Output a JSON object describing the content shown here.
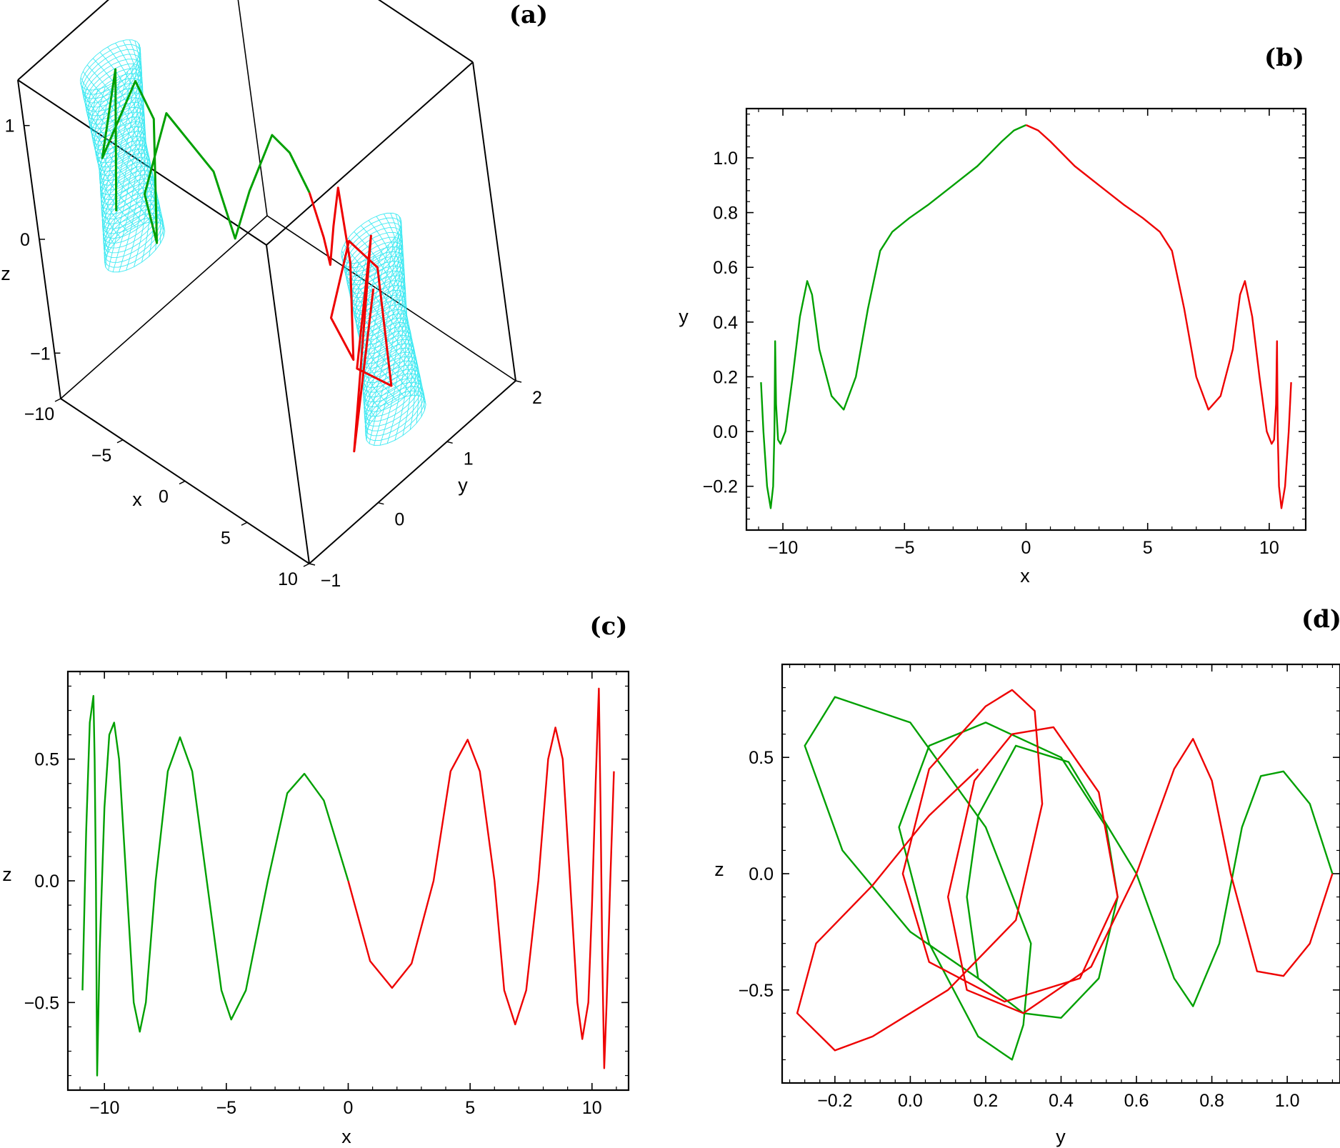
{
  "colors": {
    "green": "#00a000",
    "red": "#ee0000",
    "cyan": "#1ee6f0",
    "frame": "#000000"
  },
  "chart_data": [
    {
      "panel": "(a)",
      "type": "line",
      "projection": "3d",
      "xlabel": "x",
      "ylabel": "y",
      "zlabel": "z",
      "xlim": [
        -10,
        10
      ],
      "ylim": [
        -1,
        2
      ],
      "zlim": [
        -1.4,
        1.4
      ],
      "xticks": [
        "−10",
        "−5",
        "0",
        "5",
        "10"
      ],
      "yticks": [
        "−1",
        "0",
        "1",
        "2"
      ],
      "zticks": [
        "−1",
        "0",
        "1"
      ],
      "series": [
        {
          "color": "green",
          "points": [
            [
              -10.9,
              0.18,
              -0.45
            ],
            [
              -10.3,
              0.33,
              0.76
            ],
            [
              -10.0,
              -0.04,
              0.2
            ],
            [
              -9.5,
              0.45,
              0.65
            ],
            [
              -9.0,
              0.55,
              0.3
            ],
            [
              -8.5,
              0.3,
              -0.62
            ],
            [
              -7.5,
              0.08,
              0.0
            ],
            [
              -6.8,
              0.4,
              0.59
            ],
            [
              -5.5,
              0.72,
              0.0
            ],
            [
              -4.8,
              0.78,
              -0.57
            ],
            [
              -3.5,
              0.86,
              -0.1
            ],
            [
              -1.8,
              1.0,
              0.44
            ],
            [
              -1.0,
              1.08,
              0.3
            ],
            [
              0.0,
              1.12,
              0.0
            ]
          ]
        },
        {
          "color": "red",
          "points": [
            [
              0.0,
              1.12,
              0.0
            ],
            [
              1.0,
              1.08,
              -0.3
            ],
            [
              1.8,
              1.0,
              -0.44
            ],
            [
              3.5,
              0.86,
              0.1
            ],
            [
              4.9,
              0.78,
              0.58
            ],
            [
              5.5,
              0.72,
              0.0
            ],
            [
              6.8,
              0.4,
              -0.59
            ],
            [
              7.5,
              0.08,
              0.0
            ],
            [
              8.5,
              0.3,
              0.63
            ],
            [
              9.0,
              0.55,
              0.3
            ],
            [
              9.5,
              0.45,
              -0.65
            ],
            [
              10.0,
              -0.04,
              -0.2
            ],
            [
              10.3,
              0.33,
              0.79
            ],
            [
              10.4,
              -0.28,
              -0.77
            ],
            [
              10.9,
              0.18,
              0.45
            ]
          ]
        }
      ],
      "surfaces": [
        {
          "color": "cyan",
          "x_center": -10.5,
          "y_range": [
            -0.3,
            0.3
          ],
          "z_range": [
            -0.8,
            0.8
          ]
        },
        {
          "color": "cyan",
          "x_center": 10.5,
          "y_range": [
            -0.3,
            0.3
          ],
          "z_range": [
            -0.8,
            0.8
          ]
        }
      ]
    },
    {
      "panel": "(b)",
      "type": "line",
      "xlabel": "x",
      "ylabel": "y",
      "xlim": [
        -11.5,
        11.5
      ],
      "ylim": [
        -0.36,
        1.18
      ],
      "xticks": [
        -10,
        -5,
        0,
        5,
        10
      ],
      "yticks": [
        -0.2,
        0.0,
        0.2,
        0.4,
        0.6,
        0.8,
        1.0
      ],
      "xtick_labels": [
        "−10",
        "−5",
        "0",
        "5",
        "10"
      ],
      "ytick_labels": [
        "−0.2",
        "0.0",
        "0.2",
        "0.4",
        "0.6",
        "0.8",
        "1.0"
      ],
      "series": [
        {
          "color": "green",
          "points": [
            [
              -10.9,
              0.18
            ],
            [
              -10.8,
              0.0
            ],
            [
              -10.65,
              -0.2
            ],
            [
              -10.5,
              -0.28
            ],
            [
              -10.4,
              -0.2
            ],
            [
              -10.35,
              0.0
            ],
            [
              -10.32,
              0.33
            ],
            [
              -10.28,
              0.1
            ],
            [
              -10.2,
              -0.03
            ],
            [
              -10.1,
              -0.045
            ],
            [
              -9.9,
              0.0
            ],
            [
              -9.6,
              0.2
            ],
            [
              -9.3,
              0.42
            ],
            [
              -9.0,
              0.55
            ],
            [
              -8.8,
              0.5
            ],
            [
              -8.5,
              0.3
            ],
            [
              -8.0,
              0.13
            ],
            [
              -7.5,
              0.08
            ],
            [
              -7.0,
              0.2
            ],
            [
              -6.5,
              0.45
            ],
            [
              -6.0,
              0.66
            ],
            [
              -5.5,
              0.73
            ],
            [
              -4.8,
              0.78
            ],
            [
              -4.0,
              0.83
            ],
            [
              -3.0,
              0.9
            ],
            [
              -2.0,
              0.97
            ],
            [
              -1.0,
              1.06
            ],
            [
              -0.5,
              1.1
            ],
            [
              0.0,
              1.12
            ]
          ]
        },
        {
          "color": "red",
          "points": [
            [
              0.0,
              1.12
            ],
            [
              0.5,
              1.1
            ],
            [
              1.0,
              1.06
            ],
            [
              2.0,
              0.97
            ],
            [
              3.0,
              0.9
            ],
            [
              4.0,
              0.83
            ],
            [
              4.8,
              0.78
            ],
            [
              5.5,
              0.73
            ],
            [
              6.0,
              0.66
            ],
            [
              6.5,
              0.45
            ],
            [
              7.0,
              0.2
            ],
            [
              7.5,
              0.08
            ],
            [
              8.0,
              0.13
            ],
            [
              8.5,
              0.3
            ],
            [
              8.8,
              0.5
            ],
            [
              9.0,
              0.55
            ],
            [
              9.3,
              0.42
            ],
            [
              9.6,
              0.2
            ],
            [
              9.9,
              0.0
            ],
            [
              10.1,
              -0.045
            ],
            [
              10.2,
              -0.03
            ],
            [
              10.28,
              0.1
            ],
            [
              10.32,
              0.33
            ],
            [
              10.35,
              0.0
            ],
            [
              10.4,
              -0.2
            ],
            [
              10.5,
              -0.28
            ],
            [
              10.65,
              -0.2
            ],
            [
              10.8,
              0.0
            ],
            [
              10.9,
              0.18
            ]
          ]
        }
      ]
    },
    {
      "panel": "(c)",
      "type": "line",
      "xlabel": "x",
      "ylabel": "z",
      "xlim": [
        -11.5,
        11.5
      ],
      "ylim": [
        -0.86,
        0.86
      ],
      "xticks": [
        -10,
        -5,
        0,
        5,
        10
      ],
      "yticks": [
        -0.5,
        0.0,
        0.5
      ],
      "xtick_labels": [
        "−10",
        "−5",
        "0",
        "5",
        "10"
      ],
      "ytick_labels": [
        "−0.5",
        "0.0",
        "0.5"
      ],
      "series": [
        {
          "color": "green",
          "points": [
            [
              -10.9,
              -0.45
            ],
            [
              -10.75,
              0.2
            ],
            [
              -10.6,
              0.65
            ],
            [
              -10.45,
              0.76
            ],
            [
              -10.4,
              0.5
            ],
            [
              -10.35,
              0.0
            ],
            [
              -10.32,
              -0.5
            ],
            [
              -10.3,
              -0.8
            ],
            [
              -10.2,
              -0.3
            ],
            [
              -10.0,
              0.3
            ],
            [
              -9.8,
              0.6
            ],
            [
              -9.6,
              0.65
            ],
            [
              -9.4,
              0.5
            ],
            [
              -9.1,
              0.0
            ],
            [
              -8.8,
              -0.5
            ],
            [
              -8.55,
              -0.62
            ],
            [
              -8.3,
              -0.5
            ],
            [
              -7.9,
              0.0
            ],
            [
              -7.4,
              0.45
            ],
            [
              -6.9,
              0.59
            ],
            [
              -6.4,
              0.45
            ],
            [
              -5.8,
              0.0
            ],
            [
              -5.2,
              -0.45
            ],
            [
              -4.8,
              -0.57
            ],
            [
              -4.2,
              -0.45
            ],
            [
              -3.3,
              0.0
            ],
            [
              -2.5,
              0.36
            ],
            [
              -1.8,
              0.44
            ],
            [
              -1.0,
              0.33
            ],
            [
              0.0,
              0.0
            ]
          ]
        },
        {
          "color": "red",
          "points": [
            [
              0.0,
              0.0
            ],
            [
              0.9,
              -0.33
            ],
            [
              1.8,
              -0.44
            ],
            [
              2.6,
              -0.34
            ],
            [
              3.5,
              0.0
            ],
            [
              4.2,
              0.45
            ],
            [
              4.9,
              0.58
            ],
            [
              5.4,
              0.45
            ],
            [
              6.0,
              0.0
            ],
            [
              6.4,
              -0.45
            ],
            [
              6.85,
              -0.59
            ],
            [
              7.3,
              -0.45
            ],
            [
              7.8,
              0.0
            ],
            [
              8.2,
              0.5
            ],
            [
              8.5,
              0.63
            ],
            [
              8.8,
              0.5
            ],
            [
              9.1,
              0.0
            ],
            [
              9.4,
              -0.5
            ],
            [
              9.6,
              -0.65
            ],
            [
              9.85,
              -0.5
            ],
            [
              10.0,
              -0.1
            ],
            [
              10.15,
              0.4
            ],
            [
              10.28,
              0.79
            ],
            [
              10.35,
              0.3
            ],
            [
              10.42,
              -0.3
            ],
            [
              10.5,
              -0.77
            ],
            [
              10.6,
              -0.5
            ],
            [
              10.75,
              0.0
            ],
            [
              10.9,
              0.45
            ]
          ]
        }
      ]
    },
    {
      "panel": "(d)",
      "type": "line",
      "xlabel": "y",
      "ylabel": "z",
      "xlim": [
        -0.34,
        1.14
      ],
      "ylim": [
        -0.9,
        0.9
      ],
      "xticks": [
        -0.2,
        0.0,
        0.2,
        0.4,
        0.6,
        0.8,
        1.0
      ],
      "yticks": [
        -0.5,
        0.0,
        0.5
      ],
      "xtick_labels": [
        "−0.2",
        "0.0",
        "0.2",
        "0.4",
        "0.6",
        "0.8",
        "1.0"
      ],
      "ytick_labels": [
        "−0.5",
        "0.0",
        "0.5"
      ],
      "series": [
        {
          "color": "green",
          "points": [
            [
              0.18,
              -0.45
            ],
            [
              0.0,
              -0.25
            ],
            [
              -0.18,
              0.1
            ],
            [
              -0.28,
              0.55
            ],
            [
              -0.2,
              0.76
            ],
            [
              0.0,
              0.65
            ],
            [
              0.2,
              0.2
            ],
            [
              0.32,
              -0.3
            ],
            [
              0.3,
              -0.65
            ],
            [
              0.27,
              -0.8
            ],
            [
              0.18,
              -0.7
            ],
            [
              0.05,
              -0.3
            ],
            [
              -0.03,
              0.2
            ],
            [
              0.05,
              0.55
            ],
            [
              0.2,
              0.65
            ],
            [
              0.4,
              0.5
            ],
            [
              0.52,
              0.2
            ],
            [
              0.55,
              -0.1
            ],
            [
              0.5,
              -0.45
            ],
            [
              0.4,
              -0.62
            ],
            [
              0.3,
              -0.6
            ],
            [
              0.18,
              -0.45
            ],
            [
              0.15,
              -0.1
            ],
            [
              0.18,
              0.25
            ],
            [
              0.28,
              0.55
            ],
            [
              0.42,
              0.48
            ],
            [
              0.6,
              0.0
            ],
            [
              0.7,
              -0.45
            ],
            [
              0.75,
              -0.57
            ],
            [
              0.82,
              -0.3
            ],
            [
              0.88,
              0.2
            ],
            [
              0.93,
              0.42
            ],
            [
              0.99,
              0.44
            ],
            [
              1.06,
              0.3
            ],
            [
              1.12,
              0.0
            ]
          ]
        },
        {
          "color": "red",
          "points": [
            [
              1.12,
              0.0
            ],
            [
              1.06,
              -0.3
            ],
            [
              0.99,
              -0.44
            ],
            [
              0.92,
              -0.42
            ],
            [
              0.85,
              0.0
            ],
            [
              0.8,
              0.4
            ],
            [
              0.75,
              0.58
            ],
            [
              0.7,
              0.45
            ],
            [
              0.6,
              0.0
            ],
            [
              0.48,
              -0.4
            ],
            [
              0.3,
              -0.6
            ],
            [
              0.15,
              -0.5
            ],
            [
              0.1,
              -0.1
            ],
            [
              0.17,
              0.4
            ],
            [
              0.27,
              0.6
            ],
            [
              0.38,
              0.63
            ],
            [
              0.5,
              0.35
            ],
            [
              0.55,
              -0.1
            ],
            [
              0.45,
              -0.45
            ],
            [
              0.25,
              -0.55
            ],
            [
              0.05,
              -0.38
            ],
            [
              -0.02,
              0.0
            ],
            [
              0.05,
              0.45
            ],
            [
              0.2,
              0.72
            ],
            [
              0.27,
              0.79
            ],
            [
              0.33,
              0.7
            ],
            [
              0.35,
              0.3
            ],
            [
              0.28,
              -0.2
            ],
            [
              0.1,
              -0.5
            ],
            [
              -0.1,
              -0.7
            ],
            [
              -0.2,
              -0.76
            ],
            [
              -0.3,
              -0.6
            ],
            [
              -0.25,
              -0.3
            ],
            [
              -0.1,
              -0.05
            ],
            [
              0.05,
              0.25
            ],
            [
              0.18,
              0.45
            ]
          ]
        }
      ]
    }
  ]
}
